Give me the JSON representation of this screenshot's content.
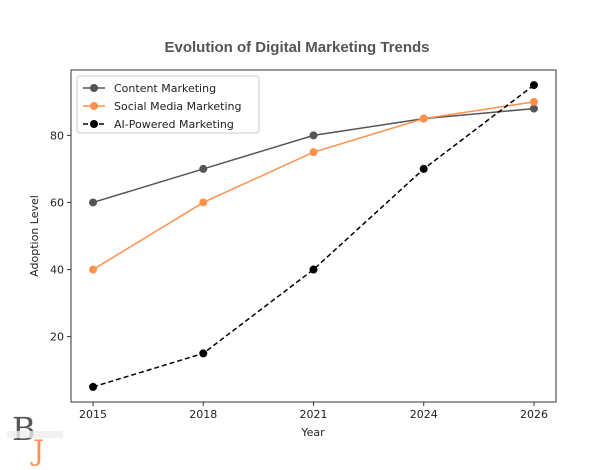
{
  "chart_data": {
    "type": "line",
    "title": "Evolution of Digital Marketing Trends",
    "xlabel": "Year",
    "ylabel": "Adoption Level",
    "categories": [
      "2015",
      "2018",
      "2021",
      "2024",
      "2026"
    ],
    "ylim": [
      0.5,
      99.5
    ],
    "yticks": [
      20,
      40,
      60,
      80
    ],
    "grid": false,
    "legend_position": "top-left",
    "series": [
      {
        "name": "Content Marketing",
        "values": [
          60,
          70,
          80,
          85,
          88
        ],
        "color": "#555555",
        "linestyle": "solid",
        "marker": "circle"
      },
      {
        "name": "Social Media Marketing",
        "values": [
          40,
          60,
          75,
          85,
          90
        ],
        "color": "#ff914d",
        "linestyle": "solid",
        "marker": "circle"
      },
      {
        "name": "AI-Powered Marketing",
        "values": [
          5,
          15,
          40,
          70,
          95
        ],
        "color": "#000000",
        "linestyle": "dashed",
        "marker": "circle"
      }
    ]
  },
  "logo": {
    "text": "BJ",
    "color_primary": "#555555",
    "color_accent": "#ff914d"
  }
}
